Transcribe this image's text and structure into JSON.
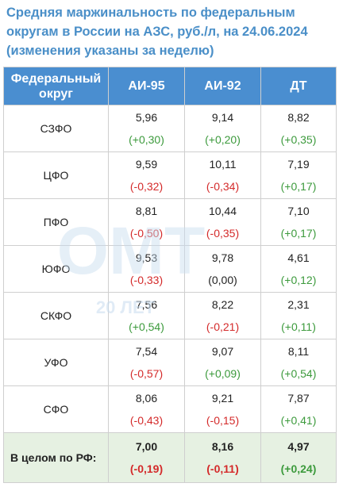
{
  "title": "Средняя маржинальность по федеральным округам в России на АЗС, руб./л, на 24.06.2024 (изменения указаны за неделю)",
  "watermark": {
    "logo": "ОМТ",
    "caption": "20 ЛЕТ"
  },
  "colors": {
    "header": "#4a8ed0",
    "title": "#4a8fc8",
    "positive": "#3c9a3c",
    "negative": "#d42a2a",
    "total_bg": "#e6f1e2"
  },
  "headers": [
    "Федеральный округ",
    "АИ-95",
    "АИ-92",
    "ДТ"
  ],
  "rows": [
    {
      "region": "СЗФО",
      "cells": [
        {
          "value": "5,96",
          "delta": "(+0,30)",
          "sign": "pos"
        },
        {
          "value": "9,14",
          "delta": "(+0,20)",
          "sign": "pos"
        },
        {
          "value": "8,82",
          "delta": "(+0,35)",
          "sign": "pos"
        }
      ]
    },
    {
      "region": "ЦФО",
      "cells": [
        {
          "value": "9,59",
          "delta": "(-0,32)",
          "sign": "neg"
        },
        {
          "value": "10,11",
          "delta": "(-0,34)",
          "sign": "neg"
        },
        {
          "value": "7,19",
          "delta": "(+0,17)",
          "sign": "pos"
        }
      ]
    },
    {
      "region": "ПФО",
      "cells": [
        {
          "value": "8,81",
          "delta": "(-0,50)",
          "sign": "neg"
        },
        {
          "value": "10,44",
          "delta": "(-0,35)",
          "sign": "neg"
        },
        {
          "value": "7,10",
          "delta": "(+0,17)",
          "sign": "pos"
        }
      ]
    },
    {
      "region": "ЮФО",
      "cells": [
        {
          "value": "9,53",
          "delta": "(-0,33)",
          "sign": "neg"
        },
        {
          "value": "9,78",
          "delta": "(0,00)",
          "sign": "zero"
        },
        {
          "value": "4,61",
          "delta": "(+0,12)",
          "sign": "pos"
        }
      ]
    },
    {
      "region": "СКФО",
      "cells": [
        {
          "value": "7,56",
          "delta": "(+0,54)",
          "sign": "pos"
        },
        {
          "value": "8,22",
          "delta": "(-0,21)",
          "sign": "neg"
        },
        {
          "value": "2,31",
          "delta": "(+0,11)",
          "sign": "pos"
        }
      ]
    },
    {
      "region": "УФО",
      "cells": [
        {
          "value": "7,54",
          "delta": "(-0,57)",
          "sign": "neg"
        },
        {
          "value": "9,07",
          "delta": "(+0,09)",
          "sign": "pos"
        },
        {
          "value": "8,11",
          "delta": "(+0,54)",
          "sign": "pos"
        }
      ]
    },
    {
      "region": "СФО",
      "cells": [
        {
          "value": "8,06",
          "delta": "(-0,43)",
          "sign": "neg"
        },
        {
          "value": "9,21",
          "delta": "(-0,15)",
          "sign": "neg"
        },
        {
          "value": "7,87",
          "delta": "(+0,41)",
          "sign": "pos"
        }
      ]
    }
  ],
  "total": {
    "label": "В целом по РФ:",
    "cells": [
      {
        "value": "7,00",
        "delta": "(-0,19)",
        "sign": "neg"
      },
      {
        "value": "8,16",
        "delta": "(-0,11)",
        "sign": "neg"
      },
      {
        "value": "4,97",
        "delta": "(+0,24)",
        "sign": "pos"
      }
    ]
  }
}
